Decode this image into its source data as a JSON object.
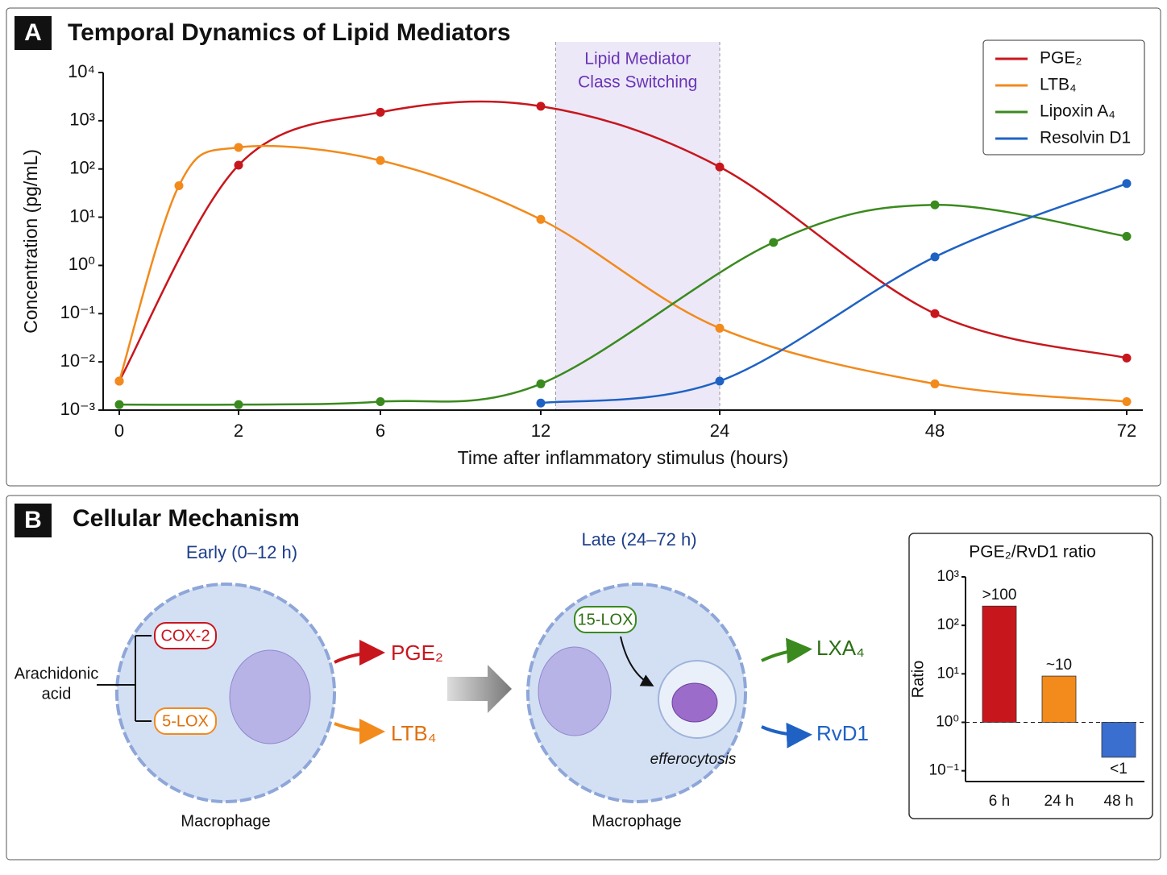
{
  "chart_data": [
    {
      "type": "line",
      "panel_label": "A",
      "title": "Temporal Dynamics of Lipid Mediators",
      "x_label": "Time after inflammatory stimulus (hours)",
      "y_label": "Concentration (pg/mL)",
      "log_y": true,
      "ylim": [
        0.001,
        10000
      ],
      "yticks": [
        {
          "value": 0.001,
          "label": "10⁻³"
        },
        {
          "value": 0.01,
          "label": "10⁻²"
        },
        {
          "value": 0.1,
          "label": "10⁻¹"
        },
        {
          "value": 1,
          "label": "10⁰"
        },
        {
          "value": 10,
          "label": "10¹"
        },
        {
          "value": 100,
          "label": "10²"
        },
        {
          "value": 1000,
          "label": "10³"
        },
        {
          "value": 10000,
          "label": "10⁴"
        }
      ],
      "xlim": [
        0,
        72
      ],
      "xticks": [
        0,
        2,
        6,
        12,
        24,
        48,
        72
      ],
      "annotation": {
        "text": [
          "Lipid Mediator",
          "Class Switching"
        ],
        "x": [
          13,
          24
        ],
        "color": "#6a35b5"
      },
      "legend": "upper right",
      "series": [
        {
          "name": "PGE₂",
          "color": "#c8161d",
          "x": [
            0,
            2,
            6,
            12,
            24,
            48,
            72
          ],
          "values": [
            0.004,
            120,
            1500,
            2000,
            110,
            0.1,
            0.012
          ]
        },
        {
          "name": "LTB₄",
          "color": "#f28a1c",
          "x": [
            0,
            1,
            2,
            6,
            12,
            24,
            48,
            72
          ],
          "values": [
            0.004,
            45,
            280,
            150,
            9,
            0.05,
            0.0035,
            0.0015
          ]
        },
        {
          "name": "Lipoxin A₄",
          "color": "#3a8a1e",
          "x": [
            0,
            2,
            6,
            12,
            30,
            48,
            72
          ],
          "values": [
            0.0013,
            0.0013,
            0.0015,
            0.0035,
            3,
            18,
            4
          ]
        },
        {
          "name": "Resolvin D1",
          "color": "#1f62c4",
          "x": [
            12,
            24,
            48,
            72
          ],
          "values": [
            0.0014,
            0.004,
            1.5,
            50
          ]
        }
      ]
    },
    {
      "type": "bar",
      "title": "PGE₂/RvD1 ratio",
      "y_label": "Ratio",
      "log_y": true,
      "categories": [
        "6 h",
        "24 h",
        "48 h"
      ],
      "values": [
        250,
        9,
        0.19
      ],
      "value_labels": [
        ">100",
        "~10",
        "<1"
      ],
      "colors": [
        "#c8161d",
        "#f28a1c",
        "#3a6fd0"
      ],
      "ylim": [
        0.06,
        1000
      ],
      "yticks": [
        {
          "value": 0.1,
          "label": "10⁻¹"
        },
        {
          "value": 1,
          "label": "10⁰"
        },
        {
          "value": 10,
          "label": "10¹"
        },
        {
          "value": 100,
          "label": "10²"
        },
        {
          "value": 1000,
          "label": "10³"
        }
      ]
    }
  ],
  "panel_b": {
    "label": "B",
    "title": "Cellular Mechanism",
    "early": "Early (0–12 h)",
    "late": "Late (24–72 h)",
    "substrate": [
      "Arachidonic",
      "acid"
    ],
    "enzyme_1": "COX-2",
    "enzyme_2": "5-LOX",
    "enzyme_3": "15-LOX",
    "product_1": "PGE₂",
    "product_2": "LTB₄",
    "product_3": "LXA₄",
    "product_4": "RvD1",
    "cell_1": "Macrophage",
    "cell_2": "Macrophage",
    "process": "efferocytosis"
  }
}
